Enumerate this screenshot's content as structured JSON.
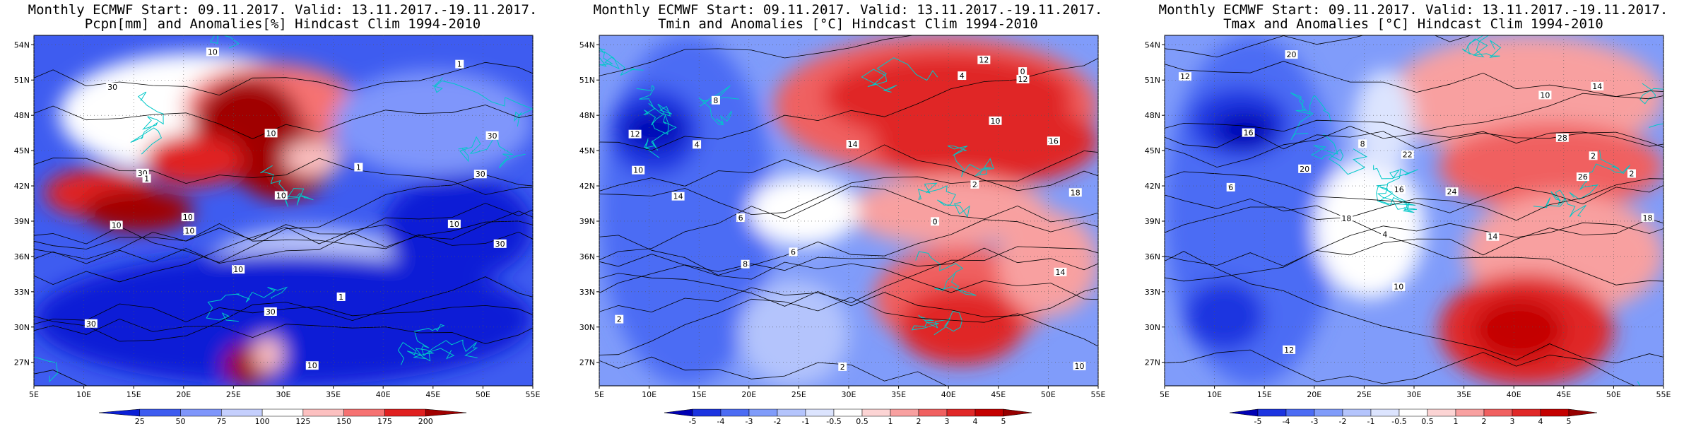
{
  "panels": [
    {
      "title_line1": "Monthly ECMWF Start: 09.11.2017. Valid: 13.11.2017.-19.11.2017.",
      "title_line2": "Pcpn[mm] and Anomalies[%] Hindcast Clim 1994-2010",
      "colorbar_ticks": [
        "25",
        "50",
        "75",
        "100",
        "125",
        "150",
        "175",
        "200"
      ],
      "colorbar_colors": [
        "#0a1fd6",
        "#3e5cf0",
        "#7f96fb",
        "#c5cffd",
        "#ffffff",
        "#fcc0c0",
        "#f67272",
        "#e02020",
        "#a00000"
      ],
      "contour_labels": [
        "10",
        "10",
        "10",
        "10",
        "10",
        "10",
        "30",
        "30",
        "30",
        "30",
        "30",
        "30",
        "30",
        "1",
        "1",
        "1",
        "1",
        "10",
        "10",
        "10"
      ]
    },
    {
      "title_line1": "Monthly ECMWF Start: 09.11.2017. Valid: 13.11.2017.-19.11.2017.",
      "title_line2": "Tmin and Anomalies [°C] Hindcast Clim 1994-2010",
      "colorbar_ticks": [
        "-5",
        "-4",
        "-3",
        "-2",
        "-1",
        "-0.5",
        "0.5",
        "1",
        "2",
        "3",
        "4",
        "5"
      ],
      "colorbar_colors": [
        "#0000b4",
        "#1c34e0",
        "#4c6cf4",
        "#809cfa",
        "#b4c4fc",
        "#dce4fe",
        "#ffffff",
        "#fcd4d4",
        "#f8a0a0",
        "#f06060",
        "#e02828",
        "#c40000",
        "#960000"
      ],
      "contour_labels": [
        "0",
        "0",
        "2",
        "4",
        "2",
        "6",
        "8",
        "10",
        "12",
        "14",
        "12",
        "10",
        "6",
        "4",
        "2",
        "14",
        "16",
        "18",
        "14",
        "12",
        "10",
        "8"
      ]
    },
    {
      "title_line1": "Monthly ECMWF Start: 09.11.2017. Valid: 13.11.2017.-19.11.2017.",
      "title_line2": "Tmax and Anomalies [°C] Hindcast Clim 1994-2010",
      "colorbar_ticks": [
        "-5",
        "-4",
        "-3",
        "-2",
        "-1",
        "-0.5",
        "0.5",
        "1",
        "2",
        "3",
        "4",
        "5"
      ],
      "colorbar_colors": [
        "#0000b4",
        "#1c34e0",
        "#4c6cf4",
        "#809cfa",
        "#b4c4fc",
        "#dce4fe",
        "#ffffff",
        "#fcd4d4",
        "#f8a0a0",
        "#f06060",
        "#e02828",
        "#c40000",
        "#960000"
      ],
      "contour_labels": [
        "2",
        "4",
        "6",
        "2",
        "8",
        "10",
        "12",
        "14",
        "16",
        "18",
        "20",
        "22",
        "24",
        "26",
        "28",
        "20",
        "18",
        "16",
        "14",
        "12",
        "10"
      ]
    }
  ],
  "axes": {
    "lat_ticks": [
      "54N",
      "51N",
      "48N",
      "45N",
      "42N",
      "39N",
      "36N",
      "33N",
      "30N",
      "27N"
    ],
    "lon_ticks": [
      "5E",
      "10E",
      "15E",
      "20E",
      "25E",
      "30E",
      "35E",
      "40E",
      "45E",
      "50E",
      "55E"
    ]
  },
  "colors": {
    "coastline": "#00c8c8",
    "contour": "#000000"
  }
}
